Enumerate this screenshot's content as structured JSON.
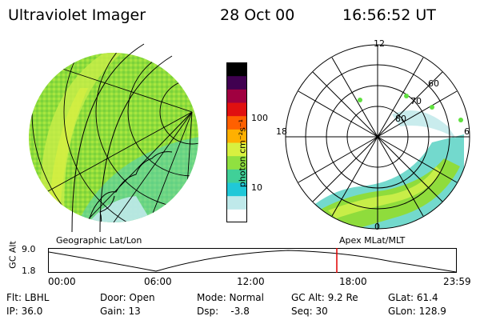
{
  "header": {
    "title": "Ultraviolet Imager",
    "date": "28 Oct 00",
    "time": "16:56:52 UT"
  },
  "colorbar": {
    "unit_label": "photon cm⁻²s⁻¹",
    "ticks": [
      "100",
      "10"
    ],
    "colors": [
      "#ffffff",
      "#bfe9ea",
      "#20c8d8",
      "#40d098",
      "#90e040",
      "#d8f040",
      "#ffb000",
      "#ff6000",
      "#e01010",
      "#a00040",
      "#400050",
      "#000000"
    ]
  },
  "polar": {
    "labels": {
      "top": "12",
      "left": "18",
      "right": "6",
      "bottom": "0"
    },
    "lat_labels": [
      "80",
      "70",
      "60"
    ]
  },
  "panel_labels": {
    "left": "Geographic Lat/Lon",
    "right": "Apex MLat/MLT"
  },
  "timeline": {
    "axis_label": "GC Alt",
    "y_top": "9.0",
    "y_bottom": "1.8",
    "x_ticks": [
      "00:00",
      "06:00",
      "12:00",
      "18:00",
      "23:59"
    ],
    "marker_color": "#e00000"
  },
  "footer": {
    "row1": [
      "Flt: LBHL",
      "Door: Open",
      "Mode: Normal",
      "GC Alt: 9.2 Re",
      "GLat: 61.4"
    ],
    "row2": [
      "IP: 36.0",
      "Gain: 13",
      "Dsp:    -3.8",
      "Seq: 30",
      "GLon: 128.9"
    ]
  }
}
